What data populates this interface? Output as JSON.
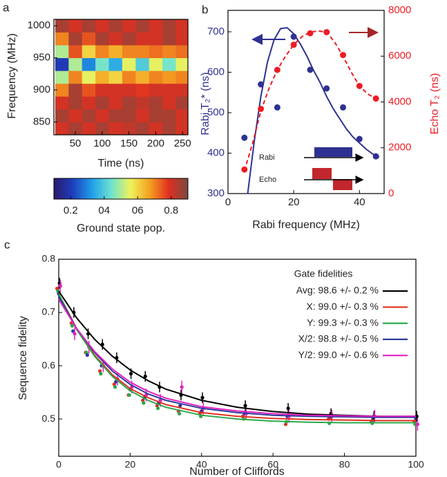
{
  "chart_data": [
    {
      "type": "heatmap",
      "panel": "a",
      "xlabel": "Time (ns)",
      "ylabel": "Frequency (MHz)",
      "x": [
        25,
        50,
        75,
        100,
        125,
        150,
        175,
        200,
        225,
        250
      ],
      "y": [
        840,
        860,
        880,
        900,
        920,
        940,
        960,
        980,
        1000
      ],
      "z": [
        [
          0.8,
          0.85,
          0.8,
          0.85,
          0.8,
          0.82,
          0.85,
          0.8,
          0.85,
          0.8
        ],
        [
          0.85,
          0.8,
          0.85,
          0.8,
          0.85,
          0.85,
          0.8,
          0.85,
          0.85,
          0.8
        ],
        [
          0.8,
          0.85,
          0.8,
          0.85,
          0.8,
          0.85,
          0.82,
          0.85,
          0.8,
          0.85
        ],
        [
          0.7,
          0.85,
          0.75,
          0.8,
          0.8,
          0.8,
          0.78,
          0.8,
          0.8,
          0.8
        ],
        [
          0.5,
          0.7,
          0.55,
          0.65,
          0.6,
          0.7,
          0.65,
          0.7,
          0.68,
          0.7
        ],
        [
          0.2,
          0.5,
          0.3,
          0.45,
          0.35,
          0.55,
          0.4,
          0.55,
          0.45,
          0.55
        ],
        [
          0.5,
          0.75,
          0.6,
          0.7,
          0.65,
          0.7,
          0.7,
          0.72,
          0.7,
          0.72
        ],
        [
          0.7,
          0.85,
          0.75,
          0.85,
          0.8,
          0.85,
          0.8,
          0.8,
          0.85,
          0.8
        ],
        [
          0.85,
          0.8,
          0.85,
          0.8,
          0.85,
          0.8,
          0.85,
          0.8,
          0.85,
          0.8
        ]
      ],
      "xlim": [
        10,
        260
      ],
      "xticks": [
        50,
        100,
        150,
        200,
        250
      ],
      "ylim": [
        830,
        1010
      ],
      "yticks": [
        850,
        900,
        950,
        1000
      ],
      "colorbar_label": "Ground state pop.",
      "zlim": [
        0.1,
        0.9
      ],
      "zticks": [
        0.2,
        {
          "value": 0.4,
          "label": "04"
        },
        {
          "value": 0.6,
          "label": "06"
        },
        0.8
      ],
      "colormap": [
        "#2a1a6b",
        "#1f3fbf",
        "#1fa0e8",
        "#6fe3d0",
        "#eef25a",
        "#f5a020",
        "#e03020",
        "#7a4a40"
      ]
    },
    {
      "type": "dual_axis",
      "panel": "b",
      "xlabel": "Rabi frequency (MHz)",
      "ylabel": "Rabi T₂* (ns)",
      "y2label": "Echo T₂ (ns)",
      "xlim": [
        0,
        47.5
      ],
      "xticks": [
        0,
        20,
        40
      ],
      "ylim": [
        300,
        753
      ],
      "yticks": [
        300,
        400,
        500,
        600,
        700
      ],
      "y2lim": [
        0,
        8000
      ],
      "y2ticks": [
        0,
        2000,
        4000,
        6000,
        8000
      ],
      "ycolor": "#2e3192",
      "y2color": "#ed1c24",
      "annotations": [
        "Rabi",
        "Echo"
      ],
      "series": [
        {
          "style": "points",
          "color": "#2e3192",
          "x": [
            5,
            10,
            15,
            20,
            25,
            30,
            35,
            40,
            45
          ],
          "values": [
            438,
            570,
            513,
            688,
            606,
            560,
            513,
            435,
            392
          ]
        },
        {
          "style": "line",
          "color": "#2e3192",
          "x": [
            6,
            8,
            10,
            12,
            14,
            16,
            18,
            20,
            22,
            24,
            26,
            28,
            30,
            32,
            34,
            36,
            38,
            40,
            42,
            44,
            46
          ],
          "values": [
            300,
            430,
            540,
            625,
            680,
            708,
            710,
            695,
            670,
            640,
            605,
            575,
            540,
            510,
            485,
            460,
            440,
            425,
            410,
            398,
            390
          ]
        },
        {
          "style": "points",
          "axis": "y2",
          "color": "#ed1c24",
          "x": [
            5,
            10,
            15,
            20,
            25,
            30,
            35,
            40,
            45
          ],
          "values": [
            1050,
            3700,
            5400,
            6500,
            7000,
            7050,
            6050,
            4700,
            4150
          ]
        },
        {
          "style": "dashed",
          "axis": "y2",
          "color": "#ed1c24",
          "x": [
            5,
            7.5,
            10,
            12.5,
            15,
            17.5,
            20,
            22.5,
            25,
            27.5,
            30,
            32.5,
            35,
            37.5,
            40,
            42.5,
            45
          ],
          "values": [
            1000,
            2200,
            3600,
            4600,
            5400,
            6000,
            6500,
            6850,
            7050,
            7100,
            7050,
            6600,
            6000,
            5300,
            4700,
            4350,
            4150
          ]
        }
      ]
    },
    {
      "type": "line",
      "panel": "c",
      "xlabel": "Number of Cliffords",
      "ylabel": "Sequence fidelity",
      "xlim": [
        0,
        100
      ],
      "xticks": [
        0,
        20,
        40,
        60,
        80,
        100
      ],
      "ylim": [
        0.43,
        0.8
      ],
      "yticks": [
        0.5,
        0.6,
        0.7,
        0.8
      ],
      "legend_title": "Gate fidelities",
      "legend": "upper right",
      "series": [
        {
          "name": "Avg: 98.6 +/- 0.2 %",
          "color": "#000000",
          "x": [
            0,
            5,
            10,
            15,
            20,
            25,
            30,
            40,
            50,
            60,
            70,
            80,
            90,
            100
          ],
          "values": [
            0.74,
            0.69,
            0.65,
            0.618,
            0.592,
            0.572,
            0.556,
            0.535,
            0.522,
            0.514,
            0.509,
            0.507,
            0.505,
            0.505
          ]
        },
        {
          "name": "X: 99.0 +/- 0.3 %",
          "color": "#e0301e",
          "x": [
            0,
            5,
            10,
            15,
            20,
            25,
            30,
            40,
            50,
            60,
            70,
            80,
            90,
            100
          ],
          "values": [
            0.735,
            0.67,
            0.62,
            0.583,
            0.557,
            0.54,
            0.527,
            0.512,
            0.505,
            0.501,
            0.499,
            0.498,
            0.497,
            0.497
          ]
        },
        {
          "name": "Y: 99.3 +/- 0.3 %",
          "color": "#2aa84a",
          "x": [
            0,
            5,
            10,
            15,
            20,
            25,
            30,
            40,
            50,
            60,
            70,
            80,
            90,
            100
          ],
          "values": [
            0.735,
            0.668,
            0.618,
            0.58,
            0.553,
            0.535,
            0.522,
            0.507,
            0.5,
            0.496,
            0.494,
            0.493,
            0.493,
            0.493
          ]
        },
        {
          "name": "X/2: 98.8 +/- 0.5 %",
          "color": "#2b3a9a",
          "x": [
            0,
            5,
            10,
            15,
            20,
            25,
            30,
            40,
            50,
            60,
            70,
            80,
            90,
            100
          ],
          "values": [
            0.73,
            0.67,
            0.625,
            0.59,
            0.565,
            0.547,
            0.535,
            0.52,
            0.512,
            0.507,
            0.505,
            0.504,
            0.503,
            0.503
          ]
        },
        {
          "name": "Y/2: 99.0 +/- 0.6 %",
          "color": "#e020c0",
          "x": [
            0,
            5,
            10,
            15,
            20,
            25,
            30,
            40,
            50,
            60,
            70,
            80,
            90,
            100
          ],
          "values": [
            0.725,
            0.67,
            0.627,
            0.594,
            0.569,
            0.552,
            0.539,
            0.523,
            0.515,
            0.51,
            0.507,
            0.506,
            0.505,
            0.505
          ]
        }
      ],
      "points": [
        {
          "color": "#e0301e",
          "x": [
            0,
            4,
            8,
            12,
            16,
            20,
            24,
            28,
            34,
            40,
            52,
            64,
            76,
            88,
            100
          ],
          "values": [
            0.745,
            0.68,
            0.625,
            0.59,
            0.565,
            0.545,
            0.535,
            0.525,
            0.515,
            0.51,
            0.505,
            0.49,
            0.5,
            0.495,
            0.495
          ]
        },
        {
          "color": "#2aa84a",
          "x": [
            0,
            4,
            8,
            12,
            16,
            20,
            24,
            28,
            34,
            40,
            52,
            64,
            76,
            88,
            100
          ],
          "values": [
            0.74,
            0.675,
            0.625,
            0.585,
            0.56,
            0.545,
            0.53,
            0.52,
            0.51,
            0.505,
            0.5,
            0.495,
            0.492,
            0.492,
            0.49
          ]
        },
        {
          "color": "#2b3a9a",
          "x": [
            0,
            4,
            8,
            12,
            16,
            20,
            24,
            28,
            34,
            40,
            52,
            64,
            76,
            88,
            100
          ],
          "values": [
            0.735,
            0.665,
            0.62,
            0.6,
            0.57,
            0.555,
            0.54,
            0.53,
            0.525,
            0.515,
            0.51,
            0.505,
            0.505,
            0.5,
            0.5
          ]
        },
        {
          "color": "#000000",
          "x": [
            0,
            4,
            8,
            12,
            16,
            20,
            24,
            28,
            34,
            40,
            52,
            64,
            76,
            88,
            100
          ],
          "values": [
            0.755,
            0.7,
            0.66,
            0.64,
            0.615,
            0.585,
            0.58,
            0.56,
            0.545,
            0.54,
            0.525,
            0.52,
            0.51,
            0.505,
            0.505
          ],
          "errors": [
            0.01,
            0.01,
            0.01,
            0.01,
            0.01,
            0.01,
            0.01,
            0.01,
            0.01,
            0.01,
            0.01,
            0.01,
            0.01,
            0.01,
            0.01
          ]
        },
        {
          "color": "#e020c0",
          "x": [
            0,
            4,
            8,
            12,
            16,
            20,
            24,
            28,
            34,
            40,
            52,
            64,
            76,
            88,
            100
          ],
          "values": [
            0.75,
            0.66,
            0.635,
            0.6,
            0.575,
            0.56,
            0.545,
            0.535,
            0.56,
            0.52,
            0.51,
            0.505,
            0.505,
            0.505,
            0.49
          ],
          "errors": [
            0.012,
            0.012,
            0.012,
            0.012,
            0.012,
            0.012,
            0.012,
            0.012,
            0.012,
            0.012,
            0.012,
            0.012,
            0.012,
            0.012,
            0.012
          ]
        }
      ]
    }
  ]
}
